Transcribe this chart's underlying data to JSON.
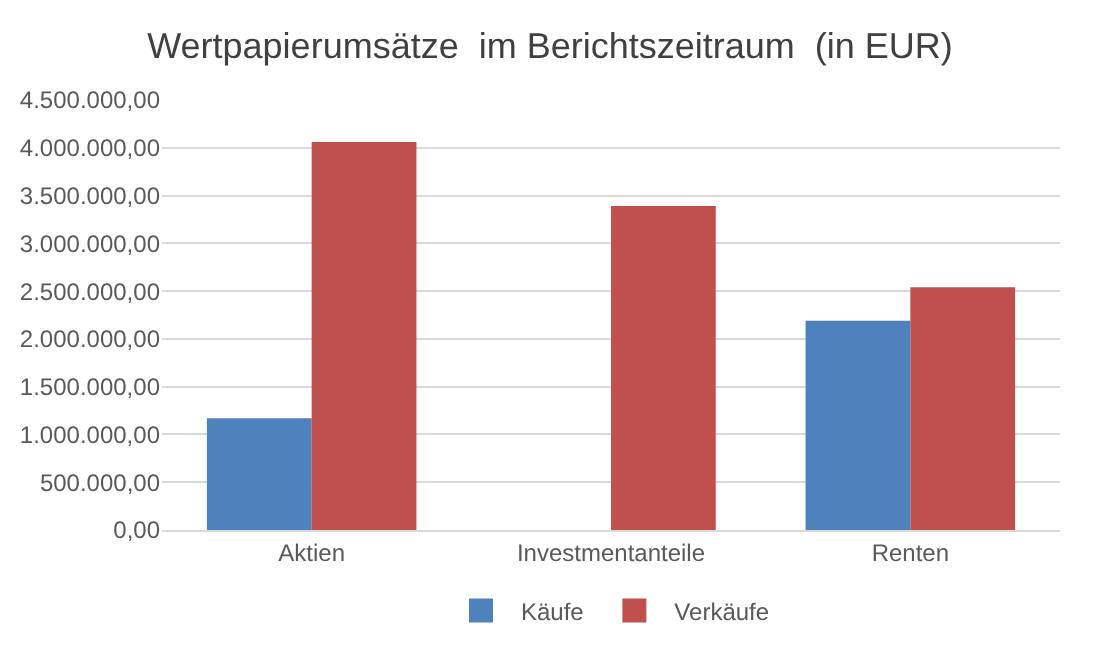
{
  "chart_data": {
    "type": "bar",
    "title": "Wertpapierumsätze  im Berichtszeitraum  (in EUR)",
    "categories": [
      "Aktien",
      "Investmentanteile",
      "Renten"
    ],
    "series": [
      {
        "name": "Käufe",
        "color": "#4f81bd",
        "values": [
          1170000,
          0,
          2190000
        ]
      },
      {
        "name": "Verkäufe",
        "color": "#c0504d",
        "values": [
          4060000,
          3390000,
          2540000
        ]
      }
    ],
    "ylim": [
      0,
      4500000
    ],
    "yticks": [
      {
        "value": 0,
        "label": "0,00"
      },
      {
        "value": 500000,
        "label": "500.000,00"
      },
      {
        "value": 1000000,
        "label": "1.000.000,00"
      },
      {
        "value": 1500000,
        "label": "1.500.000,00"
      },
      {
        "value": 2000000,
        "label": "2.000.000,00"
      },
      {
        "value": 2500000,
        "label": "2.500.000,00"
      },
      {
        "value": 3000000,
        "label": "3.000.000,00"
      },
      {
        "value": 3500000,
        "label": "3.500.000,00"
      },
      {
        "value": 4000000,
        "label": "4.000.000,00"
      },
      {
        "value": 4500000,
        "label": "4.500.000,00"
      }
    ],
    "grid": "y",
    "legend": "bottom"
  }
}
